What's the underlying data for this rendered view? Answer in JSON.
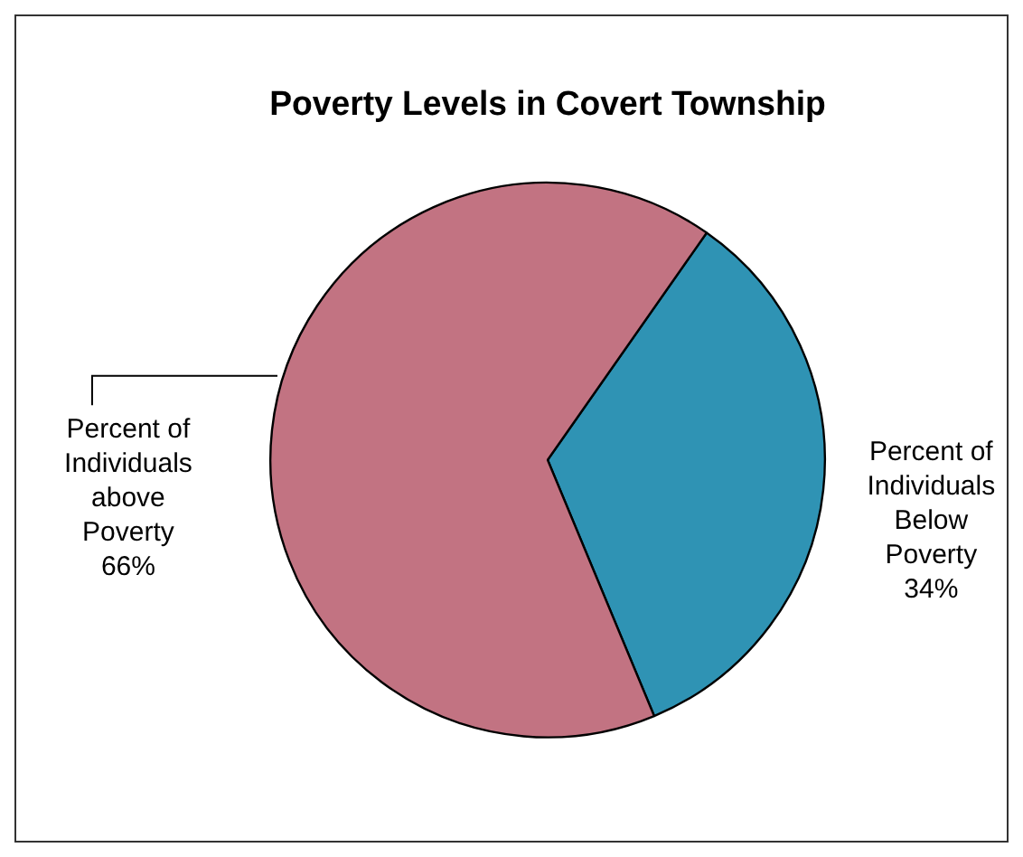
{
  "chart_data": {
    "type": "pie",
    "title": "Poverty Levels in Covert Township",
    "categories": [
      "Percent of Individuals Below Poverty",
      "Percent of Individuals above Poverty"
    ],
    "values": [
      34,
      66
    ],
    "value_labels": [
      "34%",
      "66%"
    ],
    "colors": [
      "#2f93b4",
      "#c27382"
    ],
    "legend": false
  }
}
